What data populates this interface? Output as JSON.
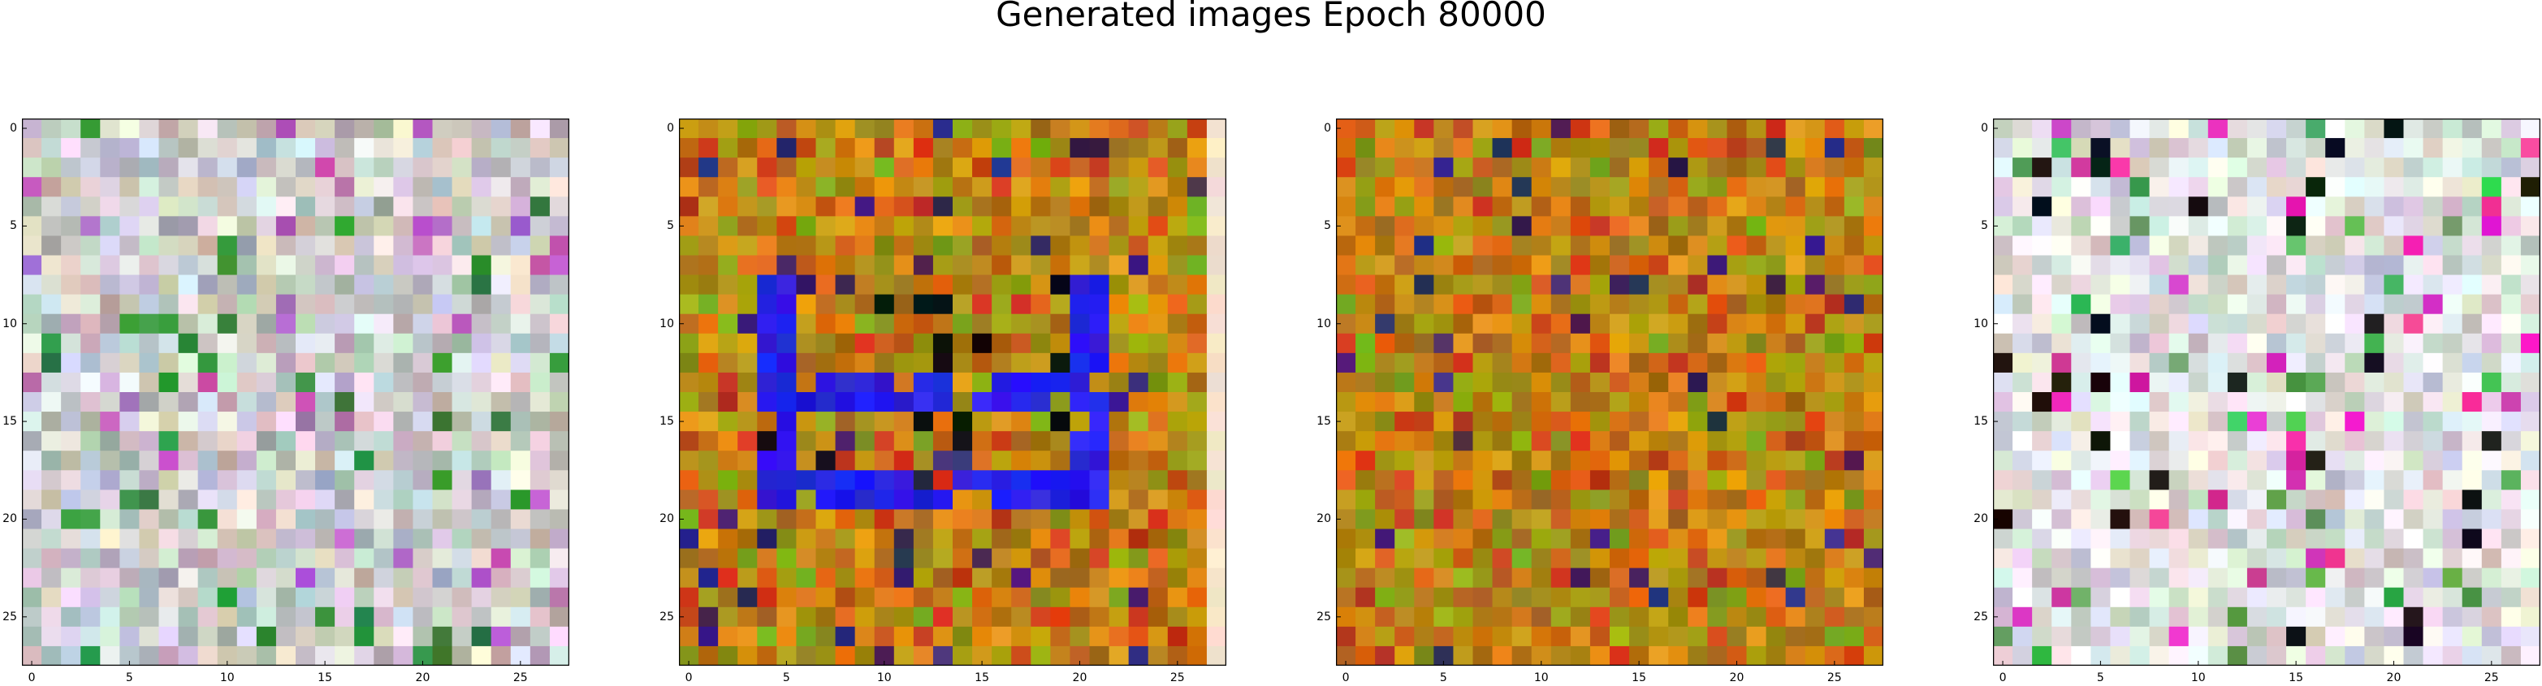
{
  "figure": {
    "title": "Generated images Epoch 80000"
  },
  "axes": {
    "tick_values": [
      0,
      5,
      10,
      15,
      20,
      25
    ],
    "tick_labels": [
      "0",
      "5",
      "10",
      "15",
      "20",
      "25"
    ],
    "pixel_grid": [
      28,
      28
    ]
  },
  "panels": [
    {
      "id": "sample-1",
      "palette": "pastel-noise",
      "base": "#c8bfb4"
    },
    {
      "id": "sample-2",
      "palette": "orange-green-with-blue-frame",
      "base": "#b07a10",
      "accent": "#1a10f0"
    },
    {
      "id": "sample-3",
      "palette": "orange-olive-noise",
      "base": "#b8800e"
    },
    {
      "id": "sample-4",
      "palette": "light-pastel-noise",
      "base": "#d9c8cf"
    }
  ]
}
